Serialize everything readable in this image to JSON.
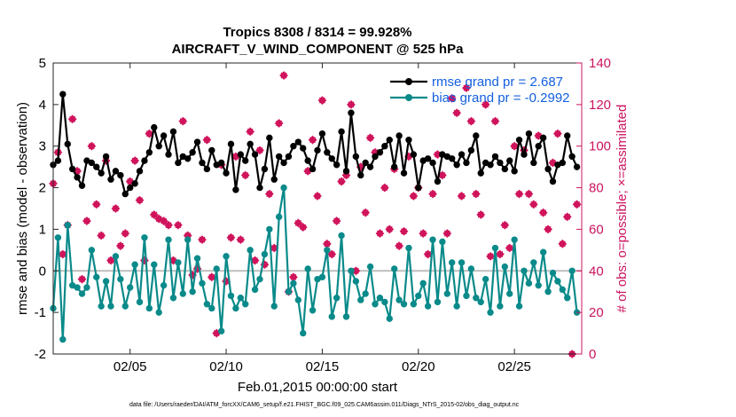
{
  "colors": {
    "rmse": "#000000",
    "bias": "#0a8a8a",
    "obs": "#d0145c",
    "zero_line": "#bdbdbd",
    "right_axis": "#cc1460",
    "legend_text": "#1460e0"
  },
  "footnote": "data file: /Users/raeder/DAI/ATM_forcXX/CAM6_setup/f.e21.FHIST_BGC.f09_025.CAM6assim.011/Diags_NTrS_2015-02/obs_diag_output.nc",
  "chart_data": {
    "type": "line",
    "title": "Tropics 8308 / 8314 = 99.928%",
    "subtitle": "AIRCRAFT_V_WIND_COMPONENT @ 525 hPa",
    "xlabel": "Feb.01,2015 00:00:00 start",
    "ylabel": "rmse and bias (model - observation)",
    "ylabel_right": "# of obs: o=possible; ×=assimilated",
    "xlim": [
      1.0,
      28.5
    ],
    "ylim": [
      -2,
      5
    ],
    "ylim_right": [
      0,
      140
    ],
    "xticks": [
      5,
      10,
      15,
      20,
      25
    ],
    "xtick_labels": [
      "02/05",
      "02/10",
      "02/15",
      "02/20",
      "02/25"
    ],
    "yticks": [
      -2,
      -1,
      0,
      1,
      2,
      3,
      4,
      5
    ],
    "yticks_right": [
      0,
      20,
      40,
      60,
      80,
      100,
      120,
      140
    ],
    "legend_position": "top-right",
    "series": [
      {
        "name": "rmse grand pr = 2.687",
        "axis": "left",
        "x": [
          1.0,
          1.25,
          1.5,
          1.75,
          2.0,
          2.25,
          2.5,
          2.75,
          3.0,
          3.25,
          3.5,
          3.75,
          4.0,
          4.25,
          4.5,
          4.75,
          5.0,
          5.25,
          5.5,
          5.75,
          6.0,
          6.25,
          6.5,
          6.75,
          7.0,
          7.25,
          7.5,
          7.75,
          8.0,
          8.25,
          8.5,
          8.75,
          9.0,
          9.25,
          9.5,
          9.75,
          10.0,
          10.25,
          10.5,
          10.75,
          11.0,
          11.25,
          11.5,
          11.75,
          12.0,
          12.25,
          12.5,
          12.75,
          13.0,
          13.25,
          13.5,
          13.75,
          14.0,
          14.25,
          14.5,
          14.75,
          15.0,
          15.25,
          15.5,
          15.75,
          16.0,
          16.25,
          16.5,
          16.75,
          17.0,
          17.25,
          17.5,
          17.75,
          18.0,
          18.25,
          18.5,
          18.75,
          19.0,
          19.25,
          19.5,
          19.75,
          20.0,
          20.25,
          20.5,
          20.75,
          21.0,
          21.25,
          21.5,
          21.75,
          22.0,
          22.25,
          22.5,
          22.75,
          23.0,
          23.25,
          23.5,
          23.75,
          24.0,
          24.25,
          24.5,
          24.75,
          25.0,
          25.25,
          25.5,
          25.75,
          26.0,
          26.25,
          26.5,
          26.75,
          27.0,
          27.25,
          27.5,
          27.75,
          28.0,
          28.25
        ],
        "values": [
          2.55,
          2.65,
          4.25,
          3.05,
          2.45,
          2.25,
          2.05,
          2.65,
          2.6,
          2.5,
          2.35,
          2.75,
          2.2,
          2.4,
          2.3,
          1.85,
          2.0,
          2.1,
          2.4,
          2.65,
          2.85,
          3.45,
          3.0,
          3.25,
          2.8,
          3.35,
          2.6,
          2.75,
          2.7,
          2.85,
          3.1,
          2.6,
          2.45,
          2.9,
          2.55,
          2.6,
          2.35,
          3.05,
          1.95,
          2.8,
          2.65,
          3.05,
          2.8,
          2.0,
          2.45,
          3.2,
          2.2,
          2.75,
          2.6,
          2.75,
          3.0,
          3.1,
          2.95,
          2.65,
          2.45,
          2.9,
          3.3,
          2.85,
          2.7,
          2.55,
          3.35,
          2.4,
          3.8,
          2.75,
          2.3,
          2.6,
          2.5,
          2.75,
          2.85,
          3.0,
          3.15,
          2.5,
          3.25,
          2.35,
          3.15,
          2.8,
          2.0,
          2.65,
          2.7,
          2.6,
          2.15,
          2.8,
          2.75,
          2.7,
          2.55,
          2.8,
          2.6,
          2.9,
          3.25,
          2.35,
          2.6,
          2.55,
          2.75,
          2.6,
          2.45,
          2.65,
          2.4,
          3.15,
          2.8,
          3.3,
          2.6,
          3.0,
          3.2,
          2.45,
          2.15,
          2.55,
          2.6,
          3.25,
          2.75,
          2.5
        ],
        "marker": "circle"
      },
      {
        "name": "bias grand pr = -0.2992",
        "axis": "left",
        "x": [
          1.0,
          1.25,
          1.5,
          1.75,
          2.0,
          2.25,
          2.5,
          2.75,
          3.0,
          3.25,
          3.5,
          3.75,
          4.0,
          4.25,
          4.5,
          4.75,
          5.0,
          5.25,
          5.5,
          5.75,
          6.0,
          6.25,
          6.5,
          6.75,
          7.0,
          7.25,
          7.5,
          7.75,
          8.0,
          8.25,
          8.5,
          8.75,
          9.0,
          9.25,
          9.5,
          9.75,
          10.0,
          10.25,
          10.5,
          10.75,
          11.0,
          11.25,
          11.5,
          11.75,
          12.0,
          12.25,
          12.5,
          12.75,
          13.0,
          13.25,
          13.5,
          13.75,
          14.0,
          14.25,
          14.5,
          14.75,
          15.0,
          15.25,
          15.5,
          15.75,
          16.0,
          16.25,
          16.5,
          16.75,
          17.0,
          17.25,
          17.5,
          17.75,
          18.0,
          18.25,
          18.5,
          18.75,
          19.0,
          19.25,
          19.5,
          19.75,
          20.0,
          20.25,
          20.5,
          20.75,
          21.0,
          21.25,
          21.5,
          21.75,
          22.0,
          22.25,
          22.5,
          22.75,
          23.0,
          23.25,
          23.5,
          23.75,
          24.0,
          24.25,
          24.5,
          24.75,
          25.0,
          25.25,
          25.5,
          25.75,
          26.0,
          26.25,
          26.5,
          26.75,
          27.0,
          27.25,
          27.5,
          27.75,
          28.0,
          28.25
        ],
        "values": [
          -0.9,
          0.8,
          -1.65,
          1.1,
          -0.35,
          -0.4,
          -0.55,
          -0.4,
          0.5,
          -0.15,
          -0.85,
          -0.25,
          -0.85,
          0.35,
          -0.2,
          -0.85,
          -0.4,
          0.15,
          -0.75,
          0.8,
          -0.9,
          0.15,
          -1.0,
          -0.35,
          0.75,
          -0.65,
          0.2,
          -0.55,
          0.75,
          -0.5,
          0.3,
          -0.3,
          -0.8,
          -0.9,
          0.05,
          -1.45,
          0.35,
          -0.6,
          -0.9,
          -0.65,
          -0.8,
          0.5,
          -0.45,
          -0.2,
          0.4,
          1.0,
          -0.85,
          1.3,
          2.0,
          -0.5,
          -0.3,
          -0.7,
          -1.5,
          0.05,
          -0.95,
          -0.2,
          -0.15,
          0.5,
          -1.1,
          -0.65,
          0.85,
          -1.1,
          0.0,
          -0.25,
          -0.7,
          -0.55,
          0.1,
          -0.8,
          -0.65,
          -0.75,
          -1.15,
          0.05,
          -0.7,
          -0.8,
          0.55,
          -0.8,
          -0.6,
          -0.3,
          -0.85,
          0.75,
          -0.75,
          0.7,
          -0.55,
          0.2,
          -0.85,
          0.2,
          -0.6,
          0.05,
          -0.65,
          -0.75,
          -0.2,
          -1.0,
          0.55,
          -0.85,
          0.1,
          -0.55,
          0.75,
          -0.85,
          0.0,
          -0.3,
          0.2,
          -0.35,
          0.45,
          -0.5,
          -0.05,
          -0.25,
          -0.45,
          -0.65,
          0.0,
          -1.0
        ],
        "marker": "circle"
      },
      {
        "name": "# of obs possible/assimilated",
        "axis": "right",
        "x": [
          1.0,
          1.25,
          1.5,
          1.75,
          2.0,
          2.25,
          2.5,
          2.75,
          3.0,
          3.25,
          3.5,
          3.75,
          4.0,
          4.25,
          4.5,
          4.75,
          5.0,
          5.25,
          5.5,
          5.75,
          6.0,
          6.25,
          6.5,
          6.75,
          7.0,
          7.25,
          7.5,
          7.75,
          8.0,
          8.25,
          8.5,
          8.75,
          9.0,
          9.25,
          9.5,
          9.75,
          10.0,
          10.25,
          10.5,
          10.75,
          11.0,
          11.25,
          11.5,
          11.75,
          12.0,
          12.25,
          12.5,
          12.75,
          13.0,
          13.25,
          13.5,
          13.75,
          14.0,
          14.25,
          14.5,
          14.75,
          15.0,
          15.25,
          15.5,
          15.75,
          16.0,
          16.25,
          16.5,
          16.75,
          17.0,
          17.25,
          17.5,
          17.75,
          18.0,
          18.25,
          18.5,
          18.75,
          19.0,
          19.25,
          19.5,
          19.75,
          20.0,
          20.25,
          20.5,
          20.75,
          21.0,
          21.25,
          21.5,
          21.75,
          22.0,
          22.25,
          22.5,
          22.75,
          23.0,
          23.25,
          23.5,
          23.75,
          24.0,
          24.25,
          24.5,
          24.75,
          25.0,
          25.25,
          25.5,
          25.75,
          26.0,
          26.25,
          26.5,
          26.75,
          27.0,
          27.25,
          27.5,
          27.75,
          28.0,
          28.25
        ],
        "values": [
          82,
          97,
          48,
          62,
          113,
          88,
          36,
          64,
          100,
          72,
          57,
          93,
          45,
          70,
          52,
          58,
          83,
          93,
          74,
          45,
          106,
          67,
          65,
          64,
          62,
          45,
          62,
          112,
          57,
          38,
          41,
          55,
          103,
          37,
          10,
          91,
          35,
          56,
          95,
          55,
          86,
          107,
          45,
          98,
          43,
          77,
          51,
          111,
          134,
          30,
          37,
          63,
          61,
          88,
          103,
          76,
          122,
          53,
          48,
          64,
          83,
          86,
          120,
          40,
          90,
          68,
          104,
          97,
          58,
          80,
          60,
          89,
          52,
          59,
          95,
          76,
          80,
          58,
          48,
          77,
          96,
          86,
          58,
          123,
          116,
          76,
          128,
          112,
          77,
          67,
          120,
          47,
          112,
          48,
          62,
          51,
          100,
          77,
          98,
          77,
          72,
          105,
          68,
          60,
          92,
          106,
          53,
          66,
          0,
          72
        ],
        "marker": "x-diamond"
      }
    ]
  }
}
